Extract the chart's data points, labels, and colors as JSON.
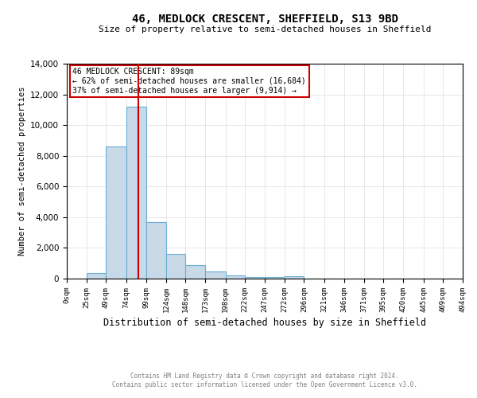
{
  "title": "46, MEDLOCK CRESCENT, SHEFFIELD, S13 9BD",
  "subtitle": "Size of property relative to semi-detached houses in Sheffield",
  "xlabel": "Distribution of semi-detached houses by size in Sheffield",
  "ylabel": "Number of semi-detached properties",
  "annotation_line1": "46 MEDLOCK CRESCENT: 89sqm",
  "annotation_line2": "← 62% of semi-detached houses are smaller (16,684)",
  "annotation_line3": "37% of semi-detached houses are larger (9,914) →",
  "footer_line1": "Contains HM Land Registry data © Crown copyright and database right 2024.",
  "footer_line2": "Contains public sector information licensed under the Open Government Licence v3.0.",
  "bar_edges": [
    0,
    25,
    49,
    74,
    99,
    124,
    148,
    173,
    198,
    222,
    247,
    272,
    296,
    321,
    346,
    371,
    395,
    420,
    445,
    469,
    494
  ],
  "bar_heights": [
    0,
    350,
    8600,
    11200,
    3700,
    1600,
    900,
    450,
    200,
    100,
    100,
    150,
    0,
    0,
    0,
    0,
    0,
    0,
    0,
    0
  ],
  "bar_color": "#c8d9e8",
  "bar_edge_color": "#6aadd5",
  "red_line_x": 89,
  "red_line_color": "#cc0000",
  "annotation_box_color": "#cc0000",
  "ylim": [
    0,
    14000
  ],
  "xlim": [
    0,
    494
  ],
  "tick_labels": [
    "0sqm",
    "25sqm",
    "49sqm",
    "74sqm",
    "99sqm",
    "124sqm",
    "148sqm",
    "173sqm",
    "198sqm",
    "222sqm",
    "247sqm",
    "272sqm",
    "296sqm",
    "321sqm",
    "346sqm",
    "371sqm",
    "395sqm",
    "420sqm",
    "445sqm",
    "469sqm",
    "494sqm"
  ],
  "tick_positions": [
    0,
    25,
    49,
    74,
    99,
    124,
    148,
    173,
    198,
    222,
    247,
    272,
    296,
    321,
    346,
    371,
    395,
    420,
    445,
    469,
    494
  ],
  "bg_color": "#ffffff",
  "grid_color": "#dddddd"
}
